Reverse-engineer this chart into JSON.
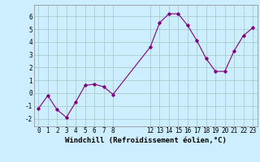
{
  "x_vals": [
    0,
    1,
    2,
    3,
    4,
    5,
    6,
    7,
    8,
    12,
    13,
    14,
    15,
    16,
    17,
    18,
    19,
    20,
    21,
    22,
    23
  ],
  "y_vals": [
    -1.2,
    -0.2,
    -1.3,
    -1.9,
    -0.7,
    0.6,
    0.7,
    0.5,
    -0.1,
    3.6,
    5.5,
    6.2,
    6.2,
    5.3,
    4.1,
    2.7,
    1.7,
    1.7,
    3.3,
    4.5,
    5.1
  ],
  "line_color": "#800080",
  "marker": "D",
  "marker_size": 1.8,
  "bg_color": "#cceeff",
  "grid_color": "#aacccc",
  "xlabel": "Windchill (Refroidissement éolien,°C)",
  "xlim": [
    -0.5,
    23.5
  ],
  "ylim": [
    -2.6,
    6.9
  ],
  "xticks": [
    0,
    1,
    2,
    3,
    4,
    5,
    6,
    7,
    8,
    12,
    13,
    14,
    15,
    16,
    17,
    18,
    19,
    20,
    21,
    22,
    23
  ],
  "yticks": [
    -2,
    -1,
    0,
    1,
    2,
    3,
    4,
    5,
    6
  ],
  "tick_fontsize": 5.5,
  "xlabel_fontsize": 6.5
}
